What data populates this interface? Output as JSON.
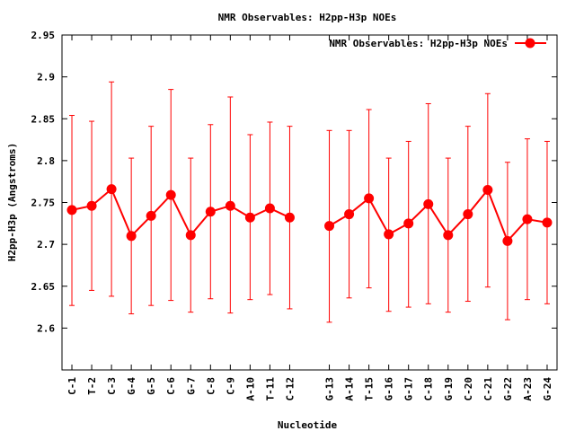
{
  "chart_data": {
    "type": "line",
    "title": "NMR Observables: H2pp-H3p NOEs",
    "xlabel": "Nucleotide",
    "ylabel": "H2pp-H3p (Angstroms)",
    "ylim": [
      2.55,
      2.95
    ],
    "yticks": [
      "2.6",
      "2.65",
      "2.7",
      "2.75",
      "2.8",
      "2.85",
      "2.9",
      "2.95"
    ],
    "legend": {
      "placement": "top-right",
      "label": "NMR Observables: H2pp-H3p NOEs"
    },
    "colors": {
      "series": "#ff0000",
      "axis": "#000000"
    },
    "categories": [
      "C-1",
      "T-2",
      "C-3",
      "G-4",
      "G-5",
      "C-6",
      "G-7",
      "C-8",
      "C-9",
      "A-10",
      "T-11",
      "C-12",
      "G-13",
      "A-14",
      "T-15",
      "G-16",
      "G-17",
      "C-18",
      "G-19",
      "C-20",
      "C-21",
      "G-22",
      "A-23",
      "G-24"
    ],
    "x": [
      1,
      2,
      3,
      4,
      5,
      6,
      7,
      8,
      9,
      10,
      11,
      12,
      14,
      15,
      16,
      17,
      18,
      19,
      20,
      21,
      22,
      23,
      24,
      25
    ],
    "series": [
      {
        "name": "NMR Observables: H2pp-H3p NOEs",
        "values": [
          2.741,
          2.746,
          2.766,
          2.71,
          2.734,
          2.759,
          2.711,
          2.739,
          2.746,
          2.732,
          2.743,
          2.732,
          2.722,
          2.736,
          2.755,
          2.712,
          2.725,
          2.748,
          2.711,
          2.736,
          2.765,
          2.704,
          2.73,
          2.726
        ],
        "err_low": [
          2.627,
          2.645,
          2.638,
          2.617,
          2.627,
          2.633,
          2.619,
          2.635,
          2.618,
          2.634,
          2.64,
          2.623,
          2.607,
          2.636,
          2.648,
          2.62,
          2.625,
          2.629,
          2.619,
          2.632,
          2.649,
          2.61,
          2.634,
          2.629
        ],
        "err_high": [
          2.854,
          2.847,
          2.894,
          2.803,
          2.841,
          2.885,
          2.803,
          2.843,
          2.876,
          2.831,
          2.846,
          2.841,
          2.836,
          2.836,
          2.861,
          2.803,
          2.823,
          2.868,
          2.803,
          2.841,
          2.88,
          2.798,
          2.826,
          2.823
        ],
        "segments": [
          [
            0,
            11
          ],
          [
            12,
            23
          ]
        ]
      }
    ]
  }
}
